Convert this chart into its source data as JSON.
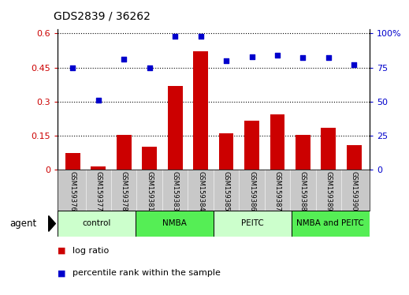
{
  "title": "GDS2839 / 36262",
  "samples": [
    "GSM159376",
    "GSM159377",
    "GSM159378",
    "GSM159381",
    "GSM159383",
    "GSM159384",
    "GSM159385",
    "GSM159386",
    "GSM159387",
    "GSM159388",
    "GSM159389",
    "GSM159390"
  ],
  "log_ratio": [
    0.075,
    0.015,
    0.155,
    0.1,
    0.37,
    0.52,
    0.16,
    0.215,
    0.245,
    0.155,
    0.185,
    0.11
  ],
  "percentile_rank": [
    75,
    51,
    81,
    75,
    98,
    98,
    80,
    83,
    84,
    82,
    82,
    77
  ],
  "bar_color": "#cc0000",
  "dot_color": "#0000cc",
  "yticks_left": [
    0,
    0.15,
    0.3,
    0.45,
    0.6
  ],
  "yticks_right": [
    0,
    25,
    50,
    75,
    100
  ],
  "ylim_left": [
    0,
    0.62
  ],
  "ylim_right": [
    0,
    103.3
  ],
  "groups": [
    {
      "label": "control",
      "start": 0,
      "end": 3,
      "color": "#ccffcc"
    },
    {
      "label": "NMBA",
      "start": 3,
      "end": 6,
      "color": "#55ee55"
    },
    {
      "label": "PEITC",
      "start": 6,
      "end": 9,
      "color": "#ccffcc"
    },
    {
      "label": "NMBA and PEITC",
      "start": 9,
      "end": 12,
      "color": "#55ee55"
    }
  ],
  "legend_bar_label": "log ratio",
  "legend_dot_label": "percentile rank within the sample",
  "agent_label": "agent",
  "bg_sample_color": "#c8c8c8",
  "title_fontsize": 10,
  "sample_fontsize": 6.0,
  "group_fontsize": 7.5
}
